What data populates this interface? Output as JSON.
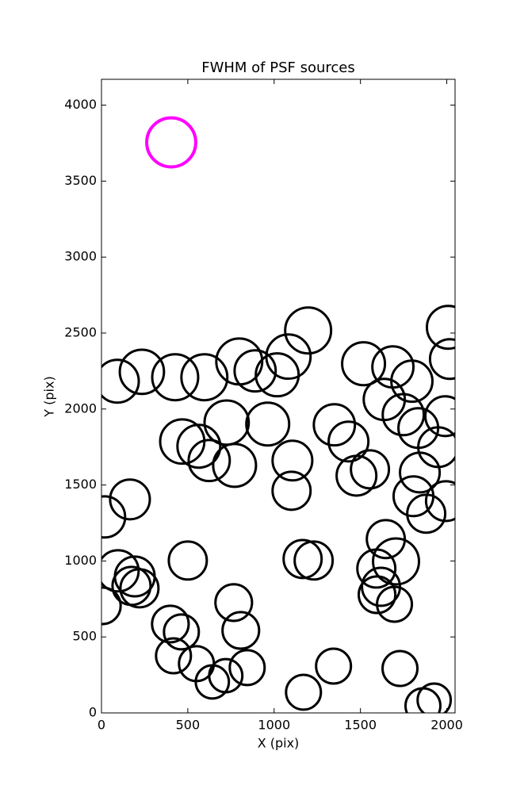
{
  "chart_data": {
    "type": "scatter",
    "title": "FWHM of PSF sources",
    "xlabel": "X (pix)",
    "ylabel": "Y (pix)",
    "xlim": [
      0,
      2048
    ],
    "ylim": [
      0,
      4170
    ],
    "xticks": [
      0,
      500,
      1000,
      1500,
      2000
    ],
    "yticks": [
      0,
      500,
      1000,
      1500,
      2000,
      2500,
      3000,
      3500,
      4000
    ],
    "series": [
      {
        "color": "#000000",
        "x": [
          92,
          234,
          427,
          596,
          798,
          890,
          1018,
          1083,
          1197,
          1518,
          1688,
          1798,
          1638,
          1748,
          1835,
          2009,
          2018,
          1991,
          725,
          963,
          1349,
          468,
          564,
          624,
          771,
          1106,
          1431,
          1555,
          1477,
          1101,
          1950,
          1844,
          1807,
          1881,
          1995,
          165,
          18,
          96,
          193,
          174,
          220,
          500,
          1165,
          1229,
          1647,
          1706,
          1592,
          1619,
          1596,
          1697,
          5,
          766,
          807,
          399,
          463,
          417,
          550,
          642,
          720,
          844,
          1170,
          1344,
          1729,
          1862,
          1927
        ],
        "values": [
          2183,
          2245,
          2209,
          2209,
          2313,
          2251,
          2225,
          2345,
          2517,
          2298,
          2277,
          2183,
          2063,
          1963,
          1875,
          2538,
          2329,
          1953,
          1911,
          1901,
          1896,
          1786,
          1755,
          1661,
          1629,
          1661,
          1786,
          1603,
          1561,
          1462,
          1749,
          1582,
          1426,
          1311,
          1394,
          1405,
          1290,
          935,
          898,
          836,
          820,
          1003,
          1013,
          1003,
          1144,
          997,
          950,
          830,
          778,
          715,
          705,
          726,
          543,
          585,
          533,
          376,
          324,
          204,
          245,
          298,
          136,
          308,
          292,
          47,
          84
        ],
        "sizes": [
          124,
          128,
          133,
          133,
          133,
          119,
          124,
          128,
          133,
          124,
          119,
          119,
          119,
          119,
          115,
          124,
          115,
          115,
          128,
          124,
          119,
          128,
          124,
          119,
          124,
          115,
          115,
          110,
          115,
          110,
          115,
          115,
          115,
          110,
          115,
          115,
          119,
          119,
          115,
          110,
          110,
          110,
          110,
          110,
          110,
          133,
          110,
          110,
          106,
          101,
          106,
          106,
          106,
          106,
          101,
          101,
          101,
          96,
          96,
          101,
          101,
          101,
          101,
          101,
          96
        ]
      },
      {
        "color": "#ff00ff",
        "x": [
          404
        ],
        "values": [
          3755
        ],
        "sizes": [
          142
        ]
      }
    ]
  }
}
